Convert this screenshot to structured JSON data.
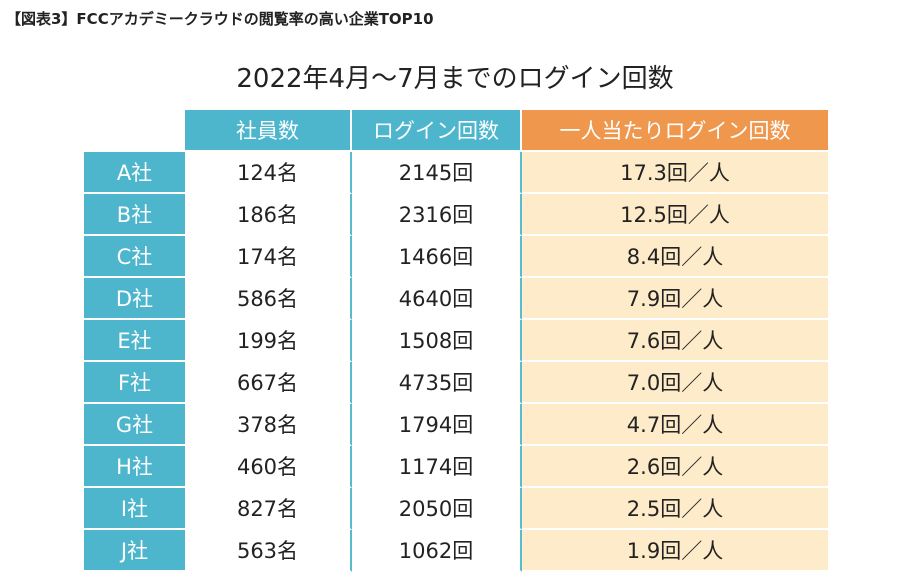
{
  "figure_label": "【図表3】FCCアカデミークラウドの閲覧率の高い企業TOP10",
  "colors": {
    "header_teal": "#4db6cc",
    "header_orange": "#f0974e",
    "per_cell_bg": "#fdebc9"
  },
  "chart_data": {
    "type": "table",
    "title": "2022年4月～7月までのログイン回数",
    "columns": [
      "",
      "社員数",
      "ログイン回数",
      "一人当たりログイン回数"
    ],
    "rows": [
      [
        "A社",
        "124名",
        "2145回",
        "17.3回／人"
      ],
      [
        "B社",
        "186名",
        "2316回",
        "12.5回／人"
      ],
      [
        "C社",
        "174名",
        "1466回",
        "8.4回／人"
      ],
      [
        "D社",
        "586名",
        "4640回",
        "7.9回／人"
      ],
      [
        "E社",
        "199名",
        "1508回",
        "7.6回／人"
      ],
      [
        "F社",
        "667名",
        "4735回",
        "7.0回／人"
      ],
      [
        "G社",
        "378名",
        "1794回",
        "4.7回／人"
      ],
      [
        "H社",
        "460名",
        "1174回",
        "2.6回／人"
      ],
      [
        "I社",
        "827名",
        "2050回",
        "2.5回／人"
      ],
      [
        "J社",
        "563名",
        "1062回",
        "1.9回／人"
      ]
    ]
  }
}
